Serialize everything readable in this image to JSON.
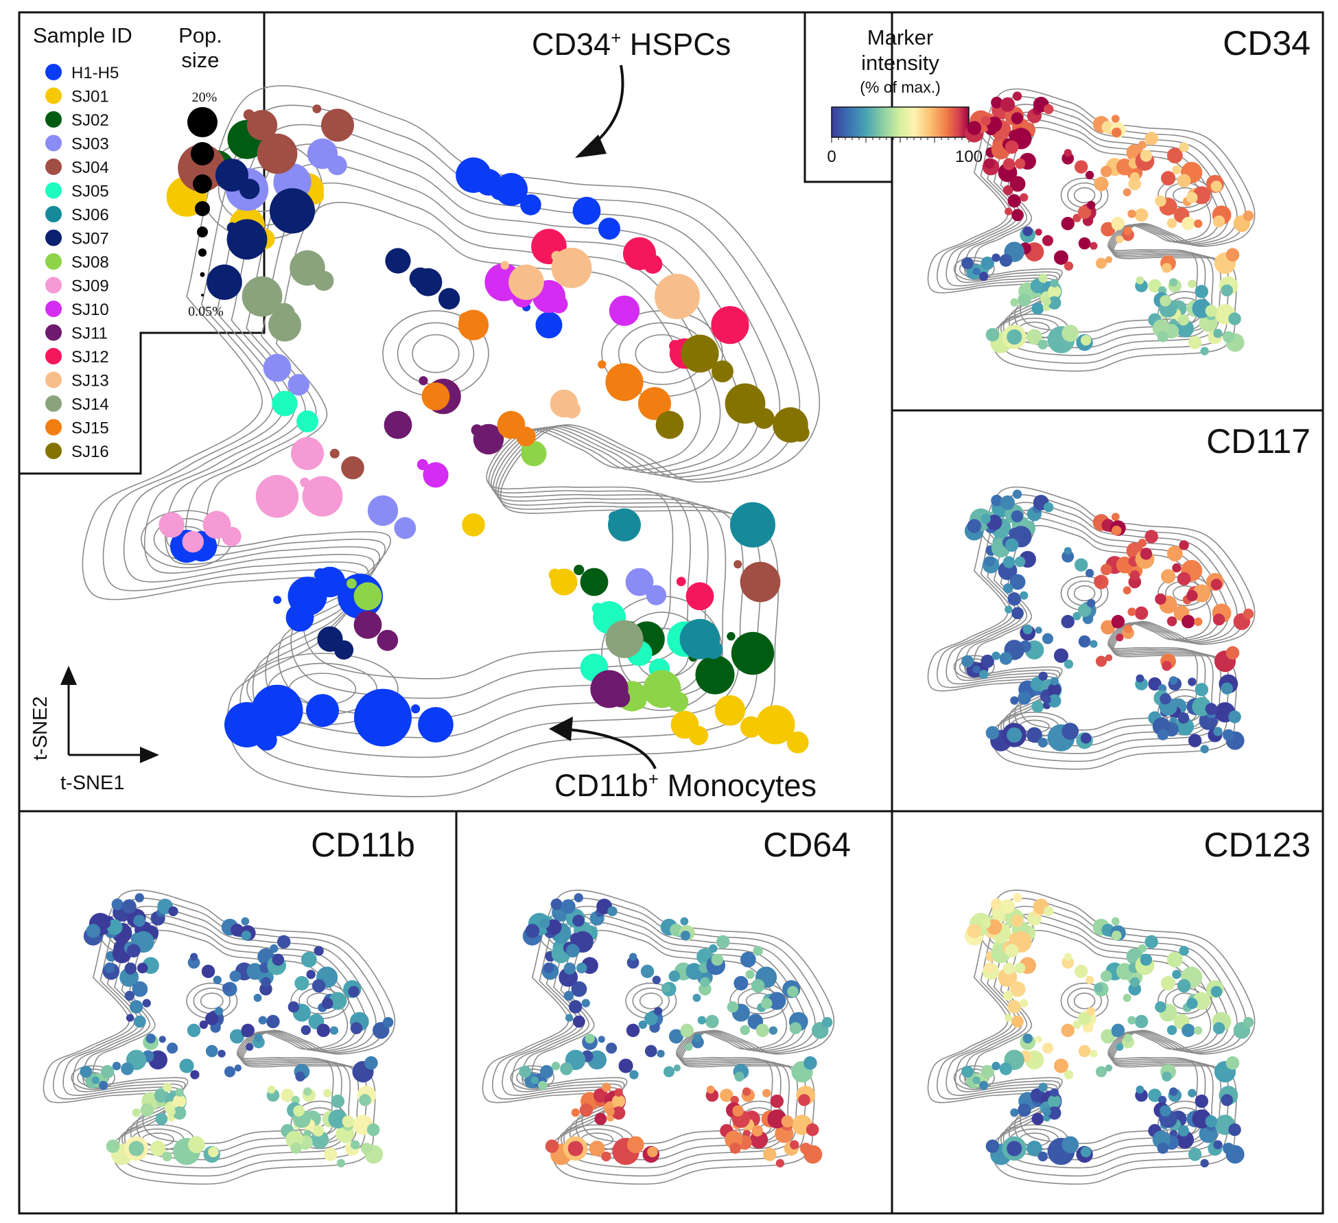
{
  "chart_data": [
    {
      "type": "scatter",
      "panel": "main",
      "title": "",
      "xlabel": "t-SNE1",
      "ylabel": "t-SNE2",
      "legend_title": "Sample ID",
      "size_legend_title": "Pop. size",
      "size_legend_max": "20%",
      "size_legend_min": "0.05%",
      "legend_placement": "top-left",
      "series": [
        {
          "name": "H1-H5",
          "color": "#0a3cf5",
          "points": [
            [
              0.28,
              0.28,
              2.5
            ],
            [
              0.31,
              0.3,
              1.8
            ],
            [
              0.35,
              0.28,
              3
            ],
            [
              0.27,
              0.25,
              1.6
            ],
            [
              0.12,
              0.35,
              2
            ],
            [
              0.14,
              0.35,
              1.8
            ],
            [
              0.5,
              0.87,
              2.2
            ],
            [
              0.52,
              0.86,
              1.5
            ],
            [
              0.55,
              0.85,
              2
            ],
            [
              0.65,
              0.82,
              1.6
            ],
            [
              0.2,
              0.1,
              3
            ],
            [
              0.24,
              0.12,
              3.5
            ],
            [
              0.3,
              0.12,
              2
            ],
            [
              0.38,
              0.11,
              4
            ],
            [
              0.45,
              0.1,
              2.2
            ],
            [
              0.6,
              0.66,
              1.5
            ]
          ]
        },
        {
          "name": "SJ01",
          "color": "#f5c800",
          "points": [
            [
              0.12,
              0.84,
              2.6
            ],
            [
              0.28,
              0.85,
              2
            ],
            [
              0.2,
              0.8,
              2.2
            ],
            [
              0.9,
              0.1,
              2.5
            ],
            [
              0.84,
              0.12,
              1.8
            ],
            [
              0.78,
              0.1,
              1.6
            ],
            [
              0.5,
              0.38,
              1.2
            ],
            [
              0.62,
              0.3,
              1.5
            ]
          ]
        },
        {
          "name": "SJ02",
          "color": "#005c12",
          "points": [
            [
              0.2,
              0.92,
              2.5
            ],
            [
              0.16,
              0.88,
              2.2
            ],
            [
              0.73,
              0.22,
              2.2
            ],
            [
              0.82,
              0.17,
              2.5
            ],
            [
              0.87,
              0.2,
              2.8
            ],
            [
              0.66,
              0.3,
              1.6
            ]
          ]
        },
        {
          "name": "SJ03",
          "color": "#8a8cf5",
          "points": [
            [
              0.2,
              0.85,
              2.8
            ],
            [
              0.26,
              0.86,
              2.4
            ],
            [
              0.3,
              0.9,
              1.8
            ],
            [
              0.24,
              0.6,
              1.6
            ],
            [
              0.38,
              0.4,
              1.8
            ],
            [
              0.72,
              0.3,
              1.6
            ]
          ]
        },
        {
          "name": "SJ04",
          "color": "#a14e44",
          "points": [
            [
              0.14,
              0.88,
              3.2
            ],
            [
              0.24,
              0.9,
              2.6
            ],
            [
              0.22,
              0.94,
              1.8
            ],
            [
              0.32,
              0.94,
              2
            ],
            [
              0.88,
              0.3,
              2.6
            ],
            [
              0.34,
              0.46,
              1.2
            ]
          ]
        },
        {
          "name": "SJ05",
          "color": "#1dfcbf",
          "points": [
            [
              0.68,
              0.25,
              2
            ],
            [
              0.66,
              0.18,
              1.6
            ],
            [
              0.78,
              0.22,
              2.2
            ],
            [
              0.72,
              0.2,
              1.4
            ],
            [
              0.25,
              0.55,
              1.4
            ]
          ]
        },
        {
          "name": "SJ06",
          "color": "#168a9a",
          "points": [
            [
              0.8,
              0.22,
              2.6
            ],
            [
              0.87,
              0.38,
              3
            ],
            [
              0.7,
              0.38,
              2
            ]
          ]
        },
        {
          "name": "SJ07",
          "color": "#0a2070",
          "points": [
            [
              0.2,
              0.78,
              2.6
            ],
            [
              0.17,
              0.72,
              2.2
            ],
            [
              0.26,
              0.82,
              3
            ],
            [
              0.18,
              0.87,
              2
            ],
            [
              0.4,
              0.75,
              1.4
            ],
            [
              0.44,
              0.72,
              1.6
            ],
            [
              0.31,
              0.22,
              1.4
            ]
          ]
        },
        {
          "name": "SJ08",
          "color": "#8ed449",
          "points": [
            [
              0.75,
              0.15,
              2.4
            ],
            [
              0.71,
              0.14,
              1.8
            ],
            [
              0.58,
              0.48,
              1.4
            ],
            [
              0.36,
              0.28,
              1.6
            ]
          ]
        },
        {
          "name": "SJ09",
          "color": "#f59ad4",
          "points": [
            [
              0.3,
              0.42,
              2.6
            ],
            [
              0.24,
              0.42,
              2.8
            ],
            [
              0.28,
              0.48,
              2
            ],
            [
              0.16,
              0.38,
              1.6
            ],
            [
              0.1,
              0.38,
              1.4
            ]
          ]
        },
        {
          "name": "SJ10",
          "color": "#d42cf2",
          "points": [
            [
              0.54,
              0.72,
              2.4
            ],
            [
              0.6,
              0.7,
              2
            ],
            [
              0.7,
              0.68,
              1.8
            ],
            [
              0.45,
              0.45,
              1.4
            ]
          ]
        },
        {
          "name": "SJ11",
          "color": "#6e1a6e",
          "points": [
            [
              0.46,
              0.56,
              2.2
            ],
            [
              0.52,
              0.5,
              1.8
            ],
            [
              0.4,
              0.52,
              1.6
            ],
            [
              0.68,
              0.15,
              2.4
            ],
            [
              0.36,
              0.24,
              1.6
            ]
          ]
        },
        {
          "name": "SJ12",
          "color": "#f5175c",
          "points": [
            [
              0.6,
              0.77,
              2.2
            ],
            [
              0.72,
              0.76,
              2
            ],
            [
              0.84,
              0.66,
              2.4
            ],
            [
              0.78,
              0.62,
              1.8
            ],
            [
              0.8,
              0.28,
              1.6
            ]
          ]
        },
        {
          "name": "SJ13",
          "color": "#f7be8c",
          "points": [
            [
              0.57,
              0.72,
              2.2
            ],
            [
              0.63,
              0.74,
              2.6
            ],
            [
              0.77,
              0.7,
              3
            ],
            [
              0.62,
              0.55,
              1.6
            ]
          ]
        },
        {
          "name": "SJ14",
          "color": "#8aa37c",
          "points": [
            [
              0.22,
              0.7,
              2.6
            ],
            [
              0.28,
              0.74,
              2.2
            ],
            [
              0.25,
              0.66,
              2
            ],
            [
              0.7,
              0.22,
              2.4
            ]
          ]
        },
        {
          "name": "SJ15",
          "color": "#f27d10",
          "points": [
            [
              0.7,
              0.58,
              2.4
            ],
            [
              0.74,
              0.55,
              2
            ],
            [
              0.5,
              0.66,
              1.8
            ],
            [
              0.45,
              0.56,
              1.6
            ],
            [
              0.55,
              0.52,
              1.6
            ]
          ]
        },
        {
          "name": "SJ16",
          "color": "#857300",
          "points": [
            [
              0.8,
              0.62,
              2.4
            ],
            [
              0.86,
              0.55,
              2.6
            ],
            [
              0.92,
              0.52,
              2.2
            ],
            [
              0.76,
              0.52,
              1.6
            ]
          ]
        }
      ],
      "annotations": [
        {
          "text": "CD34⁺ HSPCs",
          "points_to": [
            0.55,
            0.82
          ]
        },
        {
          "text": "CD11b⁺ Monocytes",
          "points_to": [
            0.52,
            0.1
          ]
        }
      ]
    },
    {
      "type": "scatter",
      "panel": "marker",
      "title": "CD34",
      "colorbar": {
        "title": "Marker intensity",
        "subtitle": "(% of max.)",
        "min": 0,
        "max": 100
      },
      "regions": [
        {
          "region": "top-left cluster",
          "intensity": 95
        },
        {
          "region": "top-right cluster",
          "intensity": 70
        },
        {
          "region": "left tail",
          "intensity": 10
        },
        {
          "region": "bottom clusters",
          "intensity": 35
        }
      ]
    },
    {
      "type": "scatter",
      "panel": "marker",
      "title": "CD117",
      "regions": [
        {
          "region": "top-left cluster",
          "intensity": 15
        },
        {
          "region": "top-right cluster",
          "intensity": 85
        },
        {
          "region": "left tail",
          "intensity": 12
        },
        {
          "region": "bottom clusters",
          "intensity": 10
        }
      ]
    },
    {
      "type": "scatter",
      "panel": "marker",
      "title": "CD11b",
      "regions": [
        {
          "region": "top-left cluster",
          "intensity": 8
        },
        {
          "region": "top-right cluster",
          "intensity": 10
        },
        {
          "region": "left tail",
          "intensity": 20
        },
        {
          "region": "bottom clusters",
          "intensity": 40
        }
      ]
    },
    {
      "type": "scatter",
      "panel": "marker",
      "title": "CD64",
      "regions": [
        {
          "region": "top-left cluster",
          "intensity": 10
        },
        {
          "region": "top-right cluster",
          "intensity": 25
        },
        {
          "region": "left tail",
          "intensity": 25
        },
        {
          "region": "bottom clusters",
          "intensity": 80
        }
      ]
    },
    {
      "type": "scatter",
      "panel": "marker",
      "title": "CD123",
      "regions": [
        {
          "region": "top-left cluster",
          "intensity": 55
        },
        {
          "region": "top-right cluster",
          "intensity": 30
        },
        {
          "region": "left tail",
          "intensity": 25
        },
        {
          "region": "bottom clusters",
          "intensity": 12
        }
      ]
    }
  ],
  "colors": {
    "colormap": [
      "#3b3c9a",
      "#3b6fb3",
      "#47a3b3",
      "#8fd1a4",
      "#d6ef9f",
      "#fdf3b0",
      "#fbc171",
      "#f07a47",
      "#d43d4f",
      "#9e0142"
    ]
  }
}
